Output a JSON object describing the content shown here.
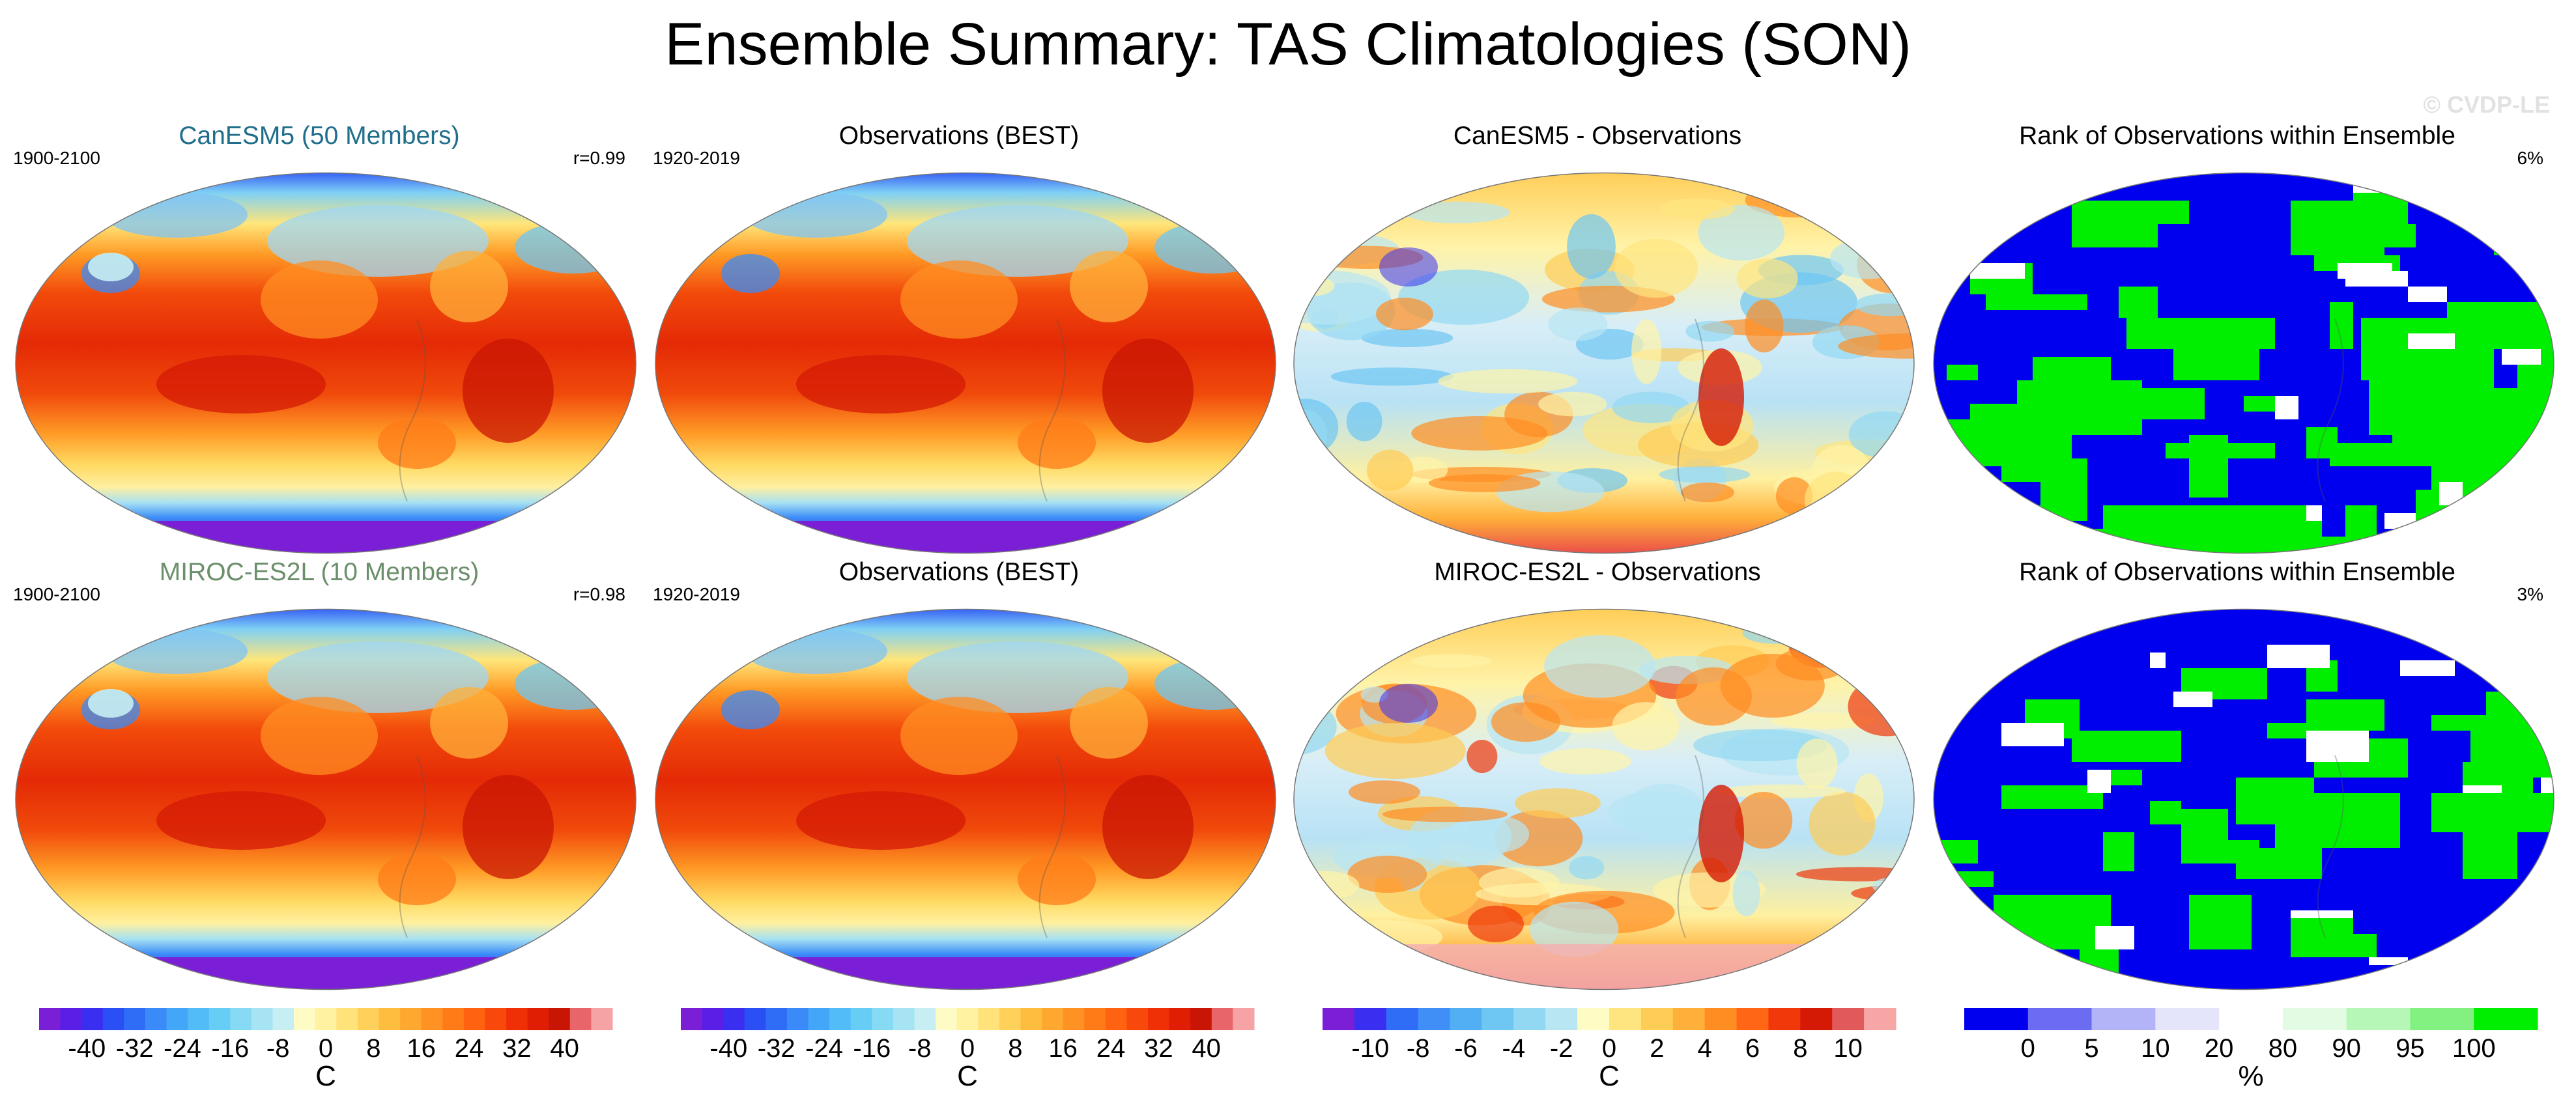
{
  "title": "Ensemble Summary: TAS Climatologies (SON)",
  "credit": "© CVDP-LE",
  "panels": [
    {
      "title": "CanESM5 (50 Members)",
      "title_color": "#1f6e8c",
      "left": "1900-2100",
      "right": "r=0.99",
      "kind": "clim",
      "variant": 0
    },
    {
      "title": "Observations (BEST)",
      "title_color": "#000000",
      "left": "1920-2019",
      "right": "",
      "kind": "clim",
      "variant": 1
    },
    {
      "title": "CanESM5 - Observations",
      "title_color": "#000000",
      "left": "",
      "right": "",
      "kind": "diff",
      "variant": 0
    },
    {
      "title": "Rank of Observations within Ensemble",
      "title_color": "#000000",
      "left": "",
      "right": "6%",
      "kind": "rank",
      "variant": 0
    },
    {
      "title": "MIROC-ES2L (10 Members)",
      "title_color": "#6b8e6b",
      "left": "1900-2100",
      "right": "r=0.98",
      "kind": "clim",
      "variant": 2
    },
    {
      "title": "Observations (BEST)",
      "title_color": "#000000",
      "left": "1920-2019",
      "right": "",
      "kind": "clim",
      "variant": 1
    },
    {
      "title": "MIROC-ES2L - Observations",
      "title_color": "#000000",
      "left": "",
      "right": "",
      "kind": "diff",
      "variant": 1
    },
    {
      "title": "Rank of Observations within Ensemble",
      "title_color": "#000000",
      "left": "",
      "right": "3%",
      "kind": "rank",
      "variant": 1
    }
  ],
  "colorbars": [
    {
      "unit": "C",
      "labels": [
        "-40",
        "-32",
        "-24",
        "-16",
        "-8",
        "0",
        "8",
        "16",
        "24",
        "32",
        "40"
      ],
      "colors": [
        "#7a1fd6",
        "#5a1ee6",
        "#3a2ff0",
        "#2a4ff5",
        "#2f6df7",
        "#3a8bf8",
        "#44a6f9",
        "#52bcf8",
        "#66cdf5",
        "#86daf4",
        "#a7e4f3",
        "#c7eef3",
        "#fffbc4",
        "#fff2a0",
        "#ffe27a",
        "#ffd05a",
        "#ffbd40",
        "#ffa830",
        "#ff9222",
        "#ff7b18",
        "#ff6210",
        "#f8480b",
        "#ef3007",
        "#df1e04",
        "#c91504",
        "#e8666a",
        "#f6a3a6"
      ]
    },
    {
      "unit": "C",
      "labels": [
        "-40",
        "-32",
        "-24",
        "-16",
        "-8",
        "0",
        "8",
        "16",
        "24",
        "32",
        "40"
      ],
      "colors": [
        "#7a1fd6",
        "#5a1ee6",
        "#3a2ff0",
        "#2a4ff5",
        "#2f6df7",
        "#3a8bf8",
        "#44a6f9",
        "#52bcf8",
        "#66cdf5",
        "#86daf4",
        "#a7e4f3",
        "#c7eef3",
        "#fffbc4",
        "#fff2a0",
        "#ffe27a",
        "#ffd05a",
        "#ffbd40",
        "#ffa830",
        "#ff9222",
        "#ff7b18",
        "#ff6210",
        "#f8480b",
        "#ef3007",
        "#df1e04",
        "#c91504",
        "#e8666a",
        "#f6a3a6"
      ]
    },
    {
      "unit": "C",
      "labels": [
        "-10",
        "-8",
        "-6",
        "-4",
        "-2",
        "0",
        "2",
        "4",
        "6",
        "8",
        "10"
      ],
      "colors": [
        "#7a1fd6",
        "#3a2ff0",
        "#2f6df7",
        "#3f8ff6",
        "#52aff4",
        "#6ec6f3",
        "#93d8f3",
        "#b8e6f3",
        "#fffbc4",
        "#ffe57f",
        "#ffcc55",
        "#ffb03a",
        "#ff8d22",
        "#ff6616",
        "#f0380a",
        "#d41a05",
        "#e05a5a",
        "#f7a6a6"
      ]
    },
    {
      "unit": "%",
      "labels": [
        "0",
        "5",
        "10",
        "20",
        "80",
        "90",
        "95",
        "100"
      ],
      "colors": [
        "#0000ee",
        "#6c6cf2",
        "#b3b3f8",
        "#e4e4fb",
        "#ffffff",
        "#e2fbe2",
        "#b6f6b6",
        "#82f182",
        "#00ee00"
      ]
    }
  ]
}
